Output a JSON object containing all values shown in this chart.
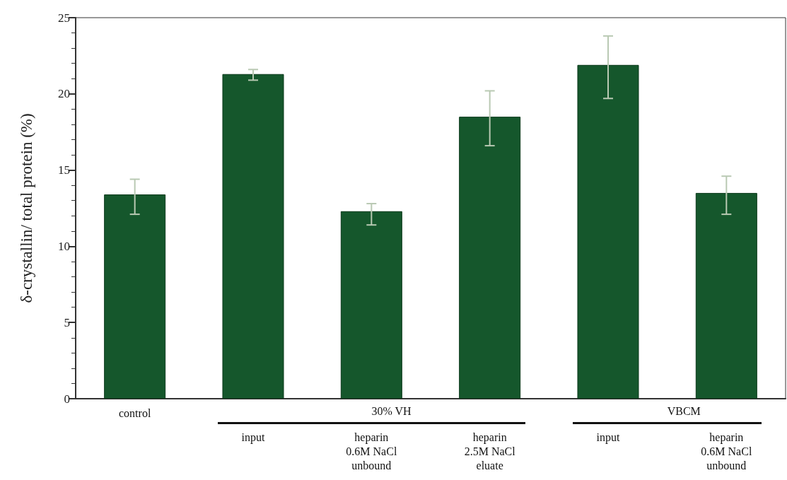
{
  "chart_data": {
    "type": "bar",
    "ylabel": "δ-crystallin/ total protein (%)",
    "categories": [
      "control",
      "input",
      "heparin\n0.6M NaCl\nunbound",
      "heparin\n2.5M NaCl\neluate",
      "input",
      "heparin\n0.6M NaCl\nunbound"
    ],
    "values": [
      13.4,
      21.3,
      12.3,
      18.5,
      21.9,
      13.5
    ],
    "errors": [
      [
        12.1,
        14.4
      ],
      [
        20.9,
        21.6
      ],
      [
        11.4,
        12.8
      ],
      [
        16.6,
        20.2
      ],
      [
        19.7,
        23.8
      ],
      [
        12.1,
        14.6
      ]
    ],
    "color": "#15572c",
    "ylim": [
      0,
      25
    ],
    "yticks": [
      0,
      5,
      10,
      15,
      20,
      25
    ],
    "grid": false,
    "annotations": [
      "30% VH",
      "VBCM"
    ]
  }
}
